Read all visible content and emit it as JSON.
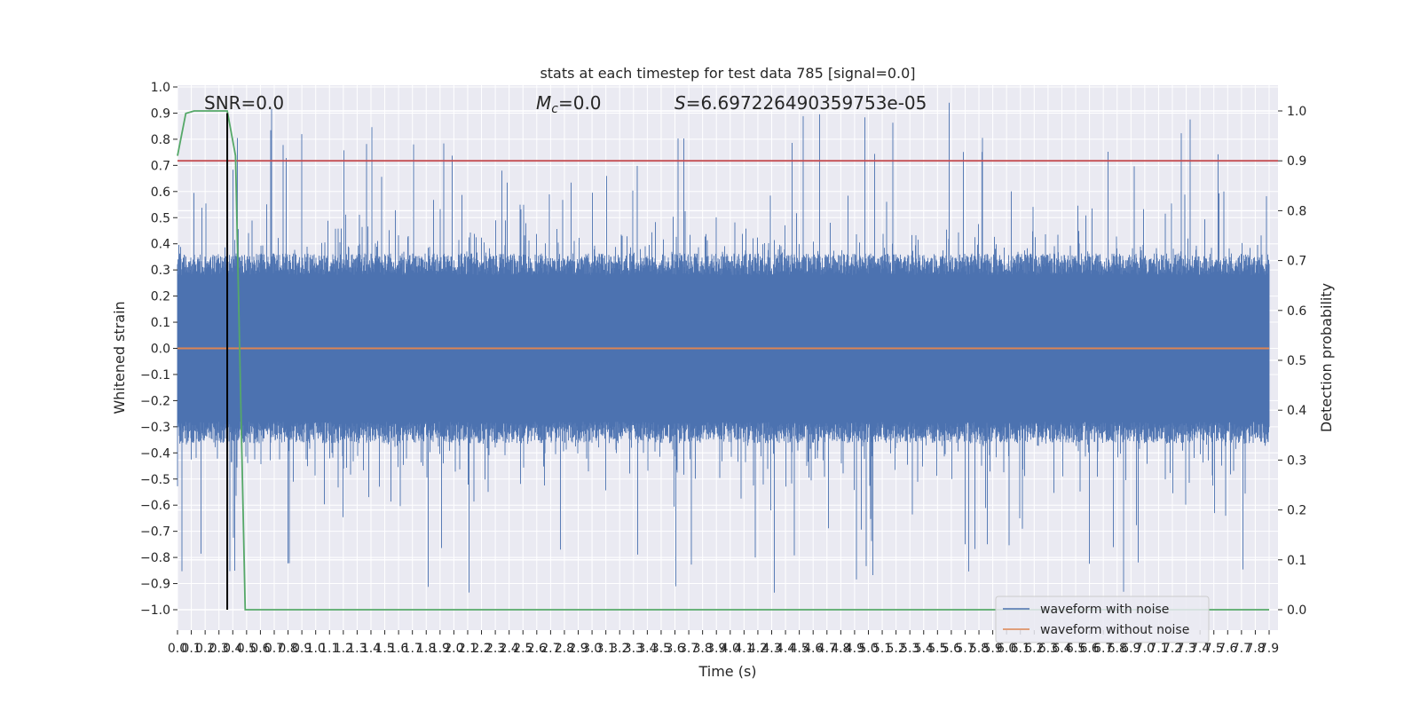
{
  "chart_data": {
    "type": "line",
    "title": "stats at each timestep for test data 785 [signal=0.0]",
    "xlabel": "Time (s)",
    "ylabel": "Whitened strain",
    "y2label": "Detection probability",
    "xlim": [
      0.0,
      7.9
    ],
    "ylim": [
      -1.0,
      1.0
    ],
    "y2lim": [
      0.0,
      1.0
    ],
    "x_ticks": [
      "0.0",
      "0.1",
      "0.2",
      "0.3",
      "0.4",
      "0.5",
      "0.6",
      "0.7",
      "0.8",
      "0.9",
      "1.0",
      "1.1",
      "1.2",
      "1.3",
      "1.4",
      "1.5",
      "1.6",
      "1.7",
      "1.8",
      "1.9",
      "2.0",
      "2.1",
      "2.2",
      "2.3",
      "2.4",
      "2.5",
      "2.6",
      "2.7",
      "2.8",
      "2.9",
      "3.0",
      "3.1",
      "3.2",
      "3.3",
      "3.4",
      "3.5",
      "3.6",
      "3.7",
      "3.8",
      "3.9",
      "4.0",
      "4.1",
      "4.2",
      "4.3",
      "4.4",
      "4.5",
      "4.6",
      "4.7",
      "4.8",
      "4.9",
      "5.0",
      "5.1",
      "5.2",
      "5.3",
      "5.4",
      "5.5",
      "5.6",
      "5.7",
      "5.8",
      "5.9",
      "6.0",
      "6.1",
      "6.2",
      "6.3",
      "6.4",
      "6.5",
      "6.6",
      "6.7",
      "6.8",
      "6.9",
      "7.0",
      "7.1",
      "7.2",
      "7.3",
      "7.4",
      "7.5",
      "7.6",
      "7.7",
      "7.8",
      "7.9"
    ],
    "y_ticks": [
      "1.0",
      "0.9",
      "0.8",
      "0.7",
      "0.6",
      "0.5",
      "0.4",
      "0.3",
      "0.2",
      "0.1",
      "0.0",
      "−0.1",
      "−0.2",
      "−0.3",
      "−0.4",
      "−0.5",
      "−0.6",
      "−0.7",
      "−0.8",
      "−0.9",
      "−1.0"
    ],
    "y2_ticks": [
      "1.0",
      "0.9",
      "0.8",
      "0.7",
      "0.6",
      "0.5",
      "0.4",
      "0.3",
      "0.2",
      "0.1",
      "0.0"
    ],
    "annotations": {
      "snr": "SNR=0.0",
      "mc_symbol": "M",
      "mc_sub": "c",
      "mc_value": "=0.0",
      "s_symbol": "S",
      "s_value": "=6.697226490359753e-05"
    },
    "legend_placement": "lower-right",
    "grid": true,
    "series": [
      {
        "name": "waveform with noise",
        "color": "#4c72b0",
        "axis": "left",
        "kind": "noise",
        "envelope_typical": 0.33,
        "envelope_max": 0.94
      },
      {
        "name": "waveform without noise",
        "color": "#dd8452",
        "axis": "left",
        "x": [
          0.0,
          7.9
        ],
        "y": [
          0.0,
          0.0
        ]
      },
      {
        "name": "Detection probability",
        "color": "#55a868",
        "axis": "right",
        "x": [
          0.0,
          0.06,
          0.12,
          0.25,
          0.36,
          0.42,
          0.49,
          7.9
        ],
        "y": [
          0.91,
          0.995,
          1.0,
          1.0,
          1.0,
          0.91,
          0.0,
          0.0
        ]
      }
    ],
    "threshold": {
      "axis": "right",
      "value": 0.9,
      "color": "#c44e52"
    },
    "marker_line": {
      "x": 0.36,
      "color": "#000000"
    }
  }
}
